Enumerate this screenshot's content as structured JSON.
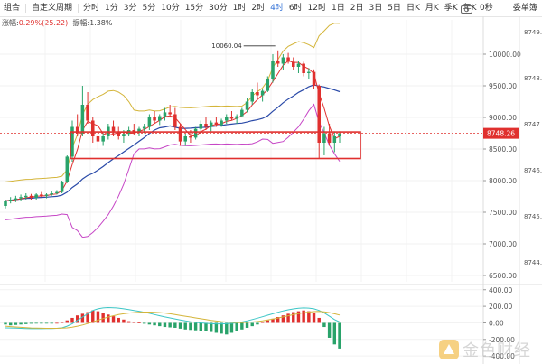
{
  "toolbar": {
    "left_items": [
      "组合",
      "自定义周期"
    ],
    "periods": [
      "分时",
      "1分",
      "3分",
      "5分",
      "10分",
      "15分",
      "30分",
      "1时",
      "2时",
      "4时",
      "6时",
      "12时",
      "1日",
      "2日",
      "3日",
      "5日",
      "日K",
      "月K",
      "季K",
      "年K"
    ],
    "active_period": "4时",
    "right_label": "0秒",
    "far_right_label": "委单簿"
  },
  "stats": {
    "change_label": "涨幅",
    "change_value": "0.29%(25.22)",
    "amplitude_label": "振幅",
    "amplitude_value": "1.38%"
  },
  "colors": {
    "up": "#e0302e",
    "down": "#29a36a",
    "ma_fast": "#e0302e",
    "ma_slow": "#2a4aa8",
    "boll_upper": "#d4b53a",
    "boll_lower": "#c646c6",
    "macd_dif": "#3cc6c6",
    "macd_dea": "#d4b53a",
    "highlight_box": "#e0302e",
    "price_line": "#e0302e"
  },
  "annotation": {
    "high_label": "10060.04"
  },
  "current_price_label": "8748.26",
  "orderbook_prices": [
    "8749.",
    "8748.",
    "8747.",
    "8746.",
    "8745.",
    "8744."
  ],
  "watermark": {
    "text": "金色财经"
  },
  "chart_data": [
    {
      "type": "candlestick",
      "title": "",
      "xlabel": "",
      "ylabel": "",
      "ylim": [
        6400,
        10400
      ],
      "yticks": [
        6500,
        7000,
        7500,
        8000,
        8500,
        9000,
        9500,
        10000
      ],
      "ytick_labels": [
        "6500.00",
        "7000.00",
        "7500.00",
        "8000.00",
        "8500.00",
        "9000.00",
        "9500.00",
        "10000.00"
      ],
      "grid": true,
      "current_price": 8748.26,
      "highlight_range": [
        8350,
        8770
      ],
      "candles": [
        [
          7600,
          7700,
          7560,
          7680
        ],
        [
          7680,
          7740,
          7640,
          7700
        ],
        [
          7700,
          7760,
          7660,
          7720
        ],
        [
          7720,
          7780,
          7680,
          7740
        ],
        [
          7740,
          7800,
          7700,
          7760
        ],
        [
          7760,
          7790,
          7700,
          7730
        ],
        [
          7730,
          7800,
          7700,
          7780
        ],
        [
          7780,
          7820,
          7740,
          7760
        ],
        [
          7760,
          7800,
          7720,
          7780
        ],
        [
          7780,
          7830,
          7760,
          7800
        ],
        [
          7800,
          7850,
          7780,
          7820
        ],
        [
          7820,
          8000,
          7800,
          7980
        ],
        [
          7980,
          8400,
          7960,
          8380
        ],
        [
          8380,
          8950,
          8300,
          8850
        ],
        [
          8850,
          9050,
          8700,
          8750
        ],
        [
          8750,
          9500,
          8700,
          9200
        ],
        [
          9200,
          9400,
          8900,
          8950
        ],
        [
          8950,
          9000,
          8600,
          8700
        ],
        [
          8700,
          8800,
          8500,
          8620
        ],
        [
          8620,
          8750,
          8550,
          8700
        ],
        [
          8700,
          8900,
          8650,
          8850
        ],
        [
          8850,
          8950,
          8700,
          8780
        ],
        [
          8780,
          8850,
          8650,
          8700
        ],
        [
          8700,
          8800,
          8600,
          8740
        ],
        [
          8740,
          8850,
          8700,
          8800
        ],
        [
          8800,
          8900,
          8720,
          8760
        ],
        [
          8760,
          8850,
          8700,
          8820
        ],
        [
          8820,
          8900,
          8750,
          8850
        ],
        [
          8850,
          9050,
          8800,
          9000
        ],
        [
          9000,
          9100,
          8900,
          8950
        ],
        [
          8950,
          9050,
          8880,
          9020
        ],
        [
          9020,
          9150,
          8950,
          9080
        ],
        [
          9080,
          9200,
          9000,
          9050
        ],
        [
          9050,
          9150,
          8800,
          8850
        ],
        [
          8850,
          8900,
          8550,
          8620
        ],
        [
          8620,
          8750,
          8550,
          8700
        ],
        [
          8700,
          8800,
          8600,
          8680
        ],
        [
          8680,
          8850,
          8650,
          8820
        ],
        [
          8820,
          8950,
          8750,
          8900
        ],
        [
          8900,
          9000,
          8800,
          8850
        ],
        [
          8850,
          8950,
          8780,
          8920
        ],
        [
          8920,
          9000,
          8850,
          8880
        ],
        [
          8880,
          8980,
          8850,
          8950
        ],
        [
          8950,
          9050,
          8900,
          9000
        ],
        [
          9000,
          9100,
          8950,
          8980
        ],
        [
          8980,
          9050,
          8900,
          9020
        ],
        [
          9020,
          9150,
          9000,
          9120
        ],
        [
          9120,
          9300,
          9080,
          9250
        ],
        [
          9250,
          9450,
          9200,
          9400
        ],
        [
          9400,
          9550,
          9300,
          9350
        ],
        [
          9350,
          9450,
          9250,
          9420
        ],
        [
          9420,
          9650,
          9400,
          9600
        ],
        [
          9600,
          10000,
          9550,
          9900
        ],
        [
          9900,
          10060,
          9800,
          9850
        ],
        [
          9850,
          10000,
          9750,
          9950
        ],
        [
          9950,
          10020,
          9850,
          9880
        ],
        [
          9880,
          9950,
          9750,
          9800
        ],
        [
          9800,
          9900,
          9700,
          9850
        ],
        [
          9850,
          9880,
          9650,
          9700
        ],
        [
          9700,
          9780,
          9600,
          9720
        ],
        [
          9720,
          9760,
          9450,
          9500
        ],
        [
          9500,
          9520,
          8350,
          8600
        ],
        [
          8600,
          8850,
          8400,
          8750
        ],
        [
          8750,
          8900,
          8550,
          8600
        ],
        [
          8600,
          8780,
          8450,
          8700
        ],
        [
          8700,
          8780,
          8600,
          8748
        ]
      ]
    },
    {
      "type": "bar",
      "title": "",
      "ylim": [
        -420,
        430
      ],
      "yticks": [
        400,
        200,
        0,
        -200,
        -400
      ],
      "ytick_labels": [
        "400.00",
        "200.00",
        "0.00",
        "-200.00",
        "-400.00"
      ],
      "histogram": [
        -20,
        -30,
        -25,
        -20,
        -15,
        -10,
        -8,
        -5,
        -3,
        -2,
        0,
        10,
        30,
        60,
        90,
        110,
        130,
        150,
        140,
        120,
        100,
        80,
        60,
        40,
        20,
        10,
        5,
        -10,
        -20,
        -30,
        -40,
        -50,
        -55,
        -60,
        -70,
        -80,
        -85,
        -90,
        -95,
        -100,
        -110,
        -120,
        -130,
        -140,
        -120,
        -100,
        -80,
        -60,
        -40,
        -20,
        10,
        30,
        50,
        70,
        90,
        110,
        130,
        140,
        150,
        140,
        120,
        60,
        -50,
        -180,
        -260,
        -310
      ],
      "dif": [
        -60,
        -62,
        -64,
        -66,
        -68,
        -70,
        -70,
        -70,
        -69,
        -68,
        -66,
        -60,
        -40,
        -10,
        30,
        70,
        110,
        150,
        170,
        180,
        185,
        183,
        178,
        170,
        160,
        150,
        140,
        128,
        115,
        100,
        86,
        72,
        60,
        48,
        36,
        24,
        14,
        6,
        0,
        -6,
        -10,
        -12,
        -12,
        -10,
        -6,
        0,
        10,
        24,
        40,
        56,
        74,
        92,
        110,
        128,
        144,
        158,
        168,
        176,
        180,
        178,
        170,
        150,
        120,
        80,
        40,
        10
      ],
      "dea": [
        -40,
        -45,
        -50,
        -54,
        -58,
        -61,
        -63,
        -65,
        -66,
        -66,
        -66,
        -64,
        -60,
        -52,
        -40,
        -25,
        -8,
        12,
        32,
        52,
        70,
        86,
        100,
        110,
        118,
        124,
        128,
        130,
        130,
        128,
        124,
        118,
        110,
        100,
        90,
        80,
        70,
        60,
        50,
        40,
        30,
        22,
        15,
        10,
        6,
        4,
        4,
        6,
        10,
        16,
        24,
        34,
        46,
        58,
        72,
        86,
        100,
        112,
        122,
        130,
        136,
        138,
        134,
        124,
        110,
        94
      ]
    }
  ]
}
